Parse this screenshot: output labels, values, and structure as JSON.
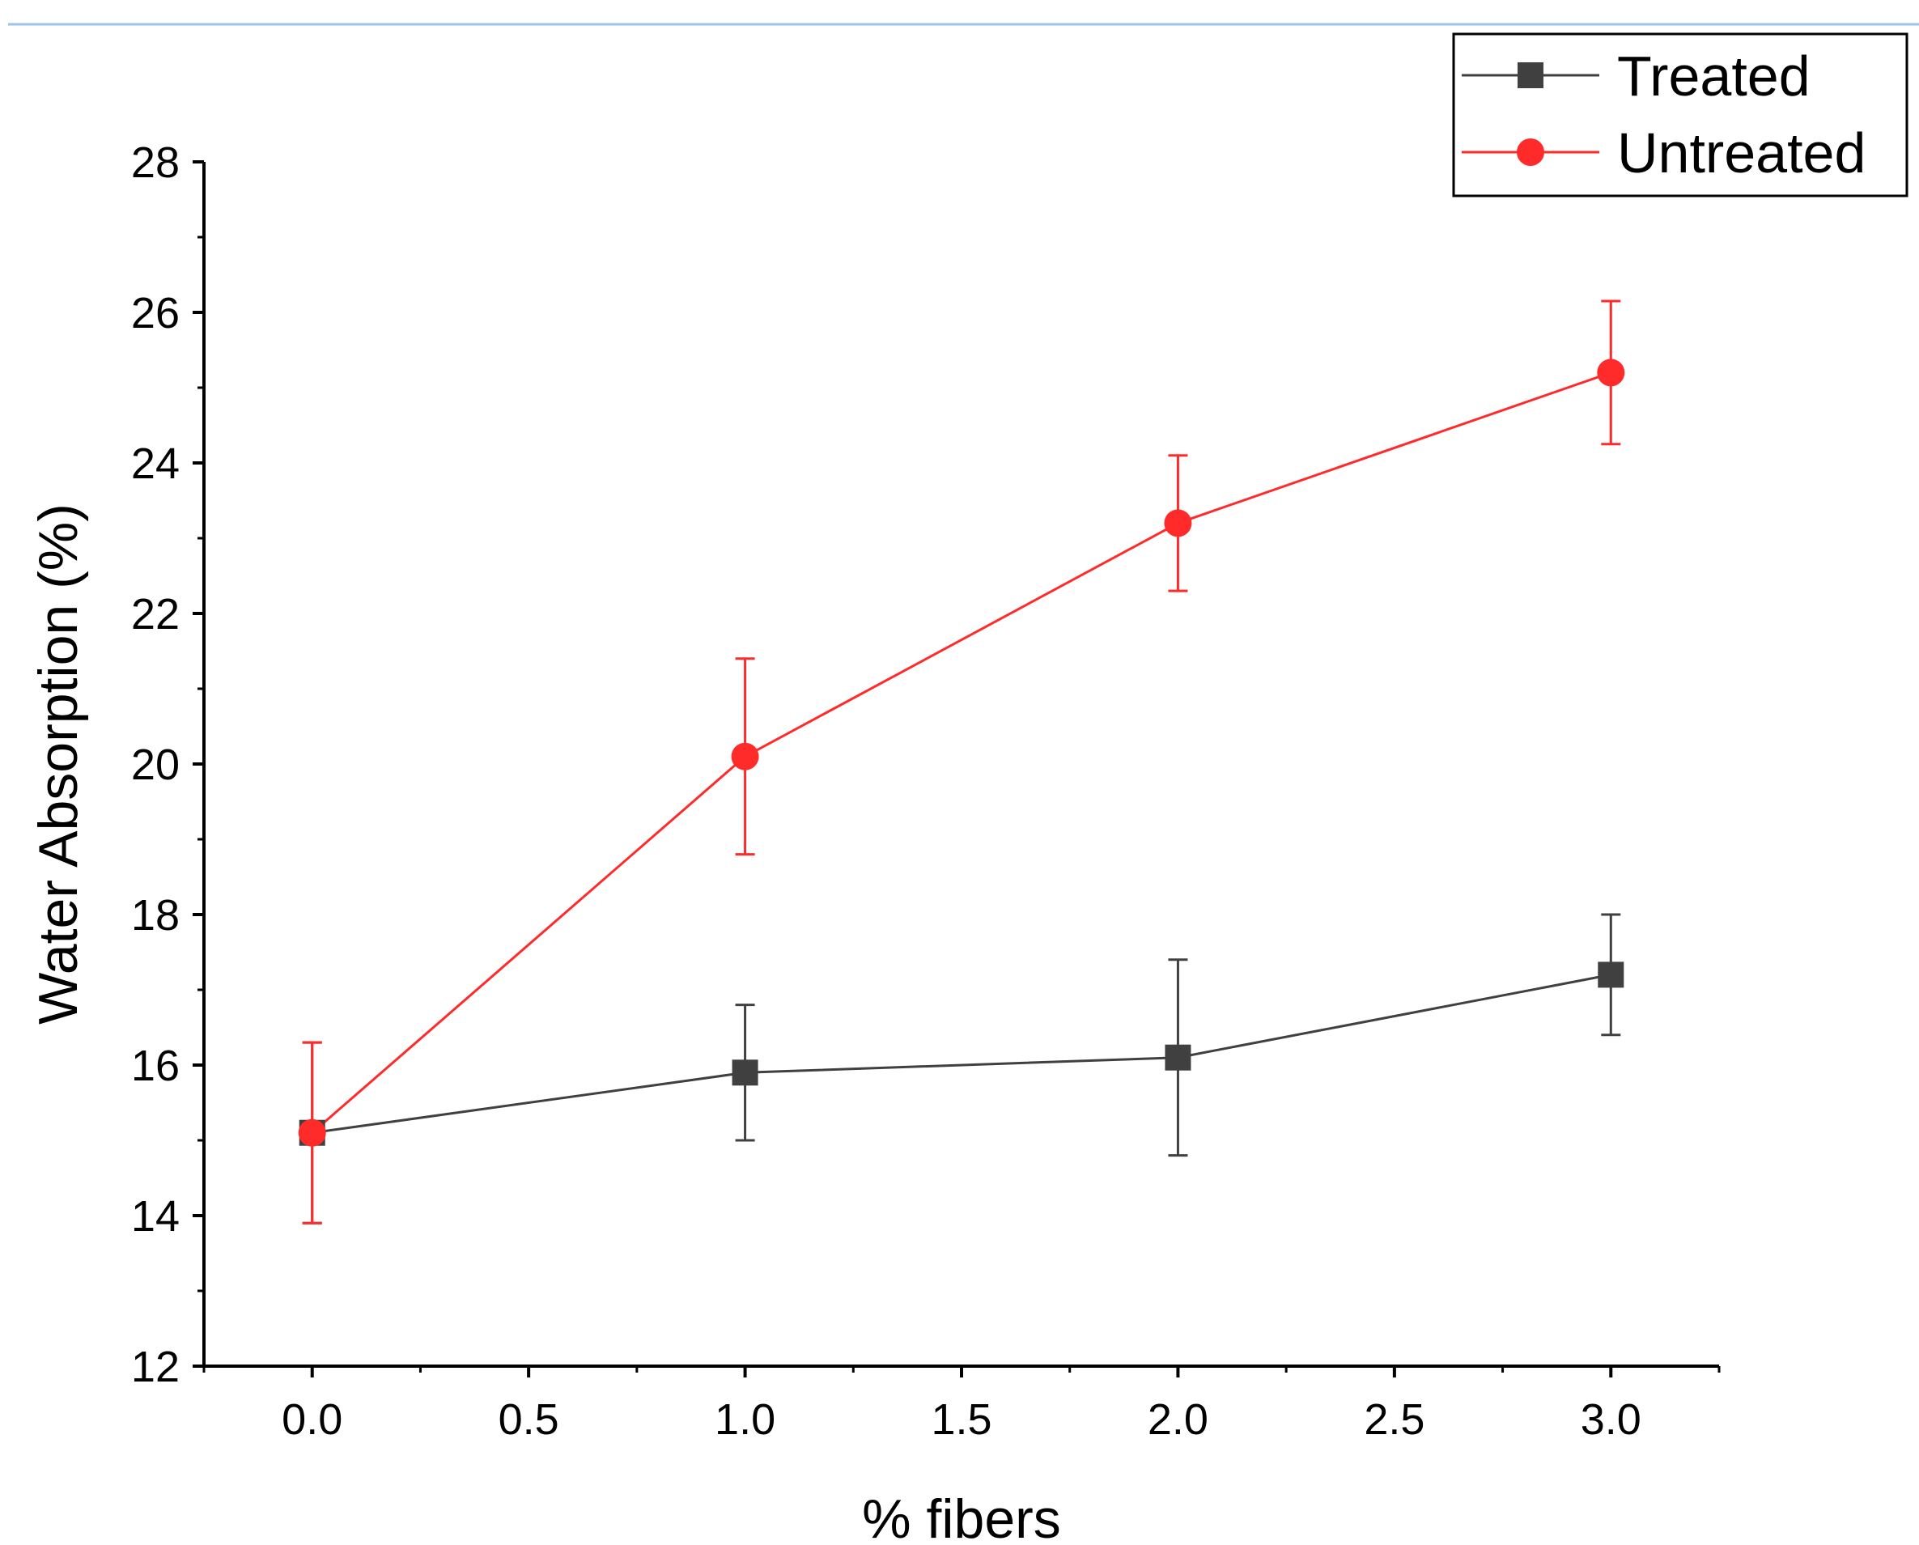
{
  "chart_data": {
    "type": "line",
    "title": "",
    "xlabel": "% fibers",
    "ylabel": "Water Absorption (%)",
    "xlim": [
      -0.25,
      3.25
    ],
    "ylim": [
      12,
      28
    ],
    "xticks": [
      0.0,
      0.5,
      1.0,
      1.5,
      2.0,
      2.5,
      3.0
    ],
    "xtick_labels": [
      "0.0",
      "0.5",
      "1.0",
      "1.5",
      "2.0",
      "2.5",
      "3.0"
    ],
    "yticks": [
      12,
      14,
      16,
      18,
      20,
      22,
      24,
      26,
      28
    ],
    "ytick_labels": [
      "12",
      "14",
      "16",
      "18",
      "20",
      "22",
      "24",
      "26",
      "28"
    ],
    "grid": false,
    "legend_position": "top-right",
    "series": [
      {
        "name": "Treated",
        "color": "#404040",
        "marker": "square",
        "x": [
          0,
          1,
          2,
          3
        ],
        "y": [
          15.1,
          15.9,
          16.1,
          17.2
        ],
        "error": [
          1.2,
          0.9,
          1.3,
          0.8
        ]
      },
      {
        "name": "Untreated",
        "color": "#ff2a2a",
        "marker": "circle",
        "x": [
          0,
          1,
          2,
          3
        ],
        "y": [
          15.1,
          20.1,
          23.2,
          25.2
        ],
        "error": [
          1.2,
          1.3,
          0.9,
          0.95
        ]
      }
    ]
  },
  "page": {
    "top_rule_color": "#9dc3e6"
  }
}
